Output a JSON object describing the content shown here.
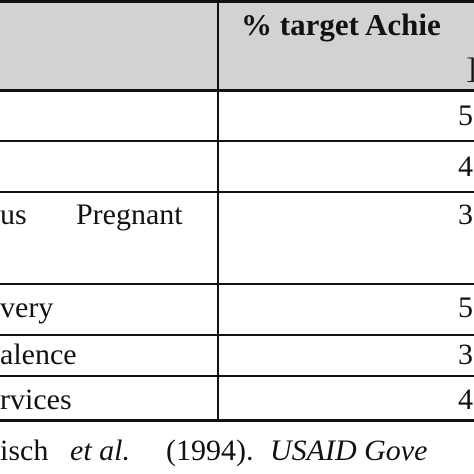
{
  "header": {
    "target_title": "% target Achie",
    "subheader_fragment": "]"
  },
  "rows": [
    {
      "label": "",
      "value": "5"
    },
    {
      "label": "",
      "value": "4"
    },
    {
      "label_left": "us",
      "label_right": "Pregnant",
      "value": "3"
    },
    {
      "label": "very",
      "value": "5"
    },
    {
      "label": "alence",
      "value": "3"
    },
    {
      "label": "rvices",
      "value": "4"
    }
  ],
  "citation": {
    "author": "isch",
    "etal": "et al.",
    "year": "(1994).",
    "source": "USAID Gove"
  }
}
